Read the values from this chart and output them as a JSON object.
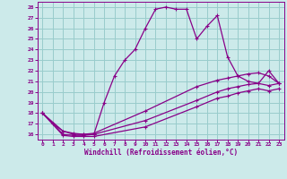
{
  "xlabel": "Windchill (Refroidissement éolien,°C)",
  "xlim": [
    -0.5,
    23.5
  ],
  "ylim": [
    15.5,
    28.5
  ],
  "xticks": [
    0,
    1,
    2,
    3,
    4,
    5,
    6,
    7,
    8,
    9,
    10,
    11,
    12,
    13,
    14,
    15,
    16,
    17,
    18,
    19,
    20,
    21,
    22,
    23
  ],
  "yticks": [
    16,
    17,
    18,
    19,
    20,
    21,
    22,
    23,
    24,
    25,
    26,
    27,
    28
  ],
  "bg_color": "#cceaea",
  "line_color": "#880088",
  "grid_color": "#99cccc",
  "curve1_x": [
    0,
    1,
    2,
    3,
    4,
    5,
    6,
    7,
    8,
    9,
    10,
    11,
    12,
    13,
    14,
    15,
    16,
    17,
    18,
    19,
    20,
    21,
    22,
    23
  ],
  "curve1_y": [
    18.0,
    17.0,
    16.3,
    16.0,
    16.0,
    16.0,
    19.0,
    21.5,
    23.0,
    24.0,
    26.0,
    27.8,
    28.0,
    27.8,
    27.8,
    25.0,
    26.2,
    27.2,
    23.3,
    21.5,
    21.0,
    20.8,
    22.0,
    20.8
  ],
  "curve2_x": [
    0,
    2,
    3,
    4,
    5,
    10,
    15,
    17,
    18,
    19,
    20,
    21,
    22,
    23
  ],
  "curve2_y": [
    18.0,
    16.3,
    16.1,
    16.0,
    16.1,
    18.2,
    20.5,
    21.1,
    21.3,
    21.5,
    21.7,
    21.8,
    21.5,
    20.8
  ],
  "curve3_x": [
    0,
    2,
    3,
    4,
    5,
    10,
    15,
    17,
    18,
    19,
    20,
    21,
    22,
    23
  ],
  "curve3_y": [
    18.0,
    16.0,
    15.9,
    15.9,
    16.0,
    17.3,
    19.2,
    20.0,
    20.3,
    20.5,
    20.7,
    20.8,
    20.6,
    20.8
  ],
  "curve4_x": [
    0,
    2,
    3,
    4,
    5,
    10,
    15,
    17,
    18,
    19,
    20,
    21,
    22,
    23
  ],
  "curve4_y": [
    18.0,
    15.9,
    15.8,
    15.8,
    15.8,
    16.7,
    18.6,
    19.4,
    19.6,
    19.9,
    20.1,
    20.3,
    20.1,
    20.3
  ]
}
